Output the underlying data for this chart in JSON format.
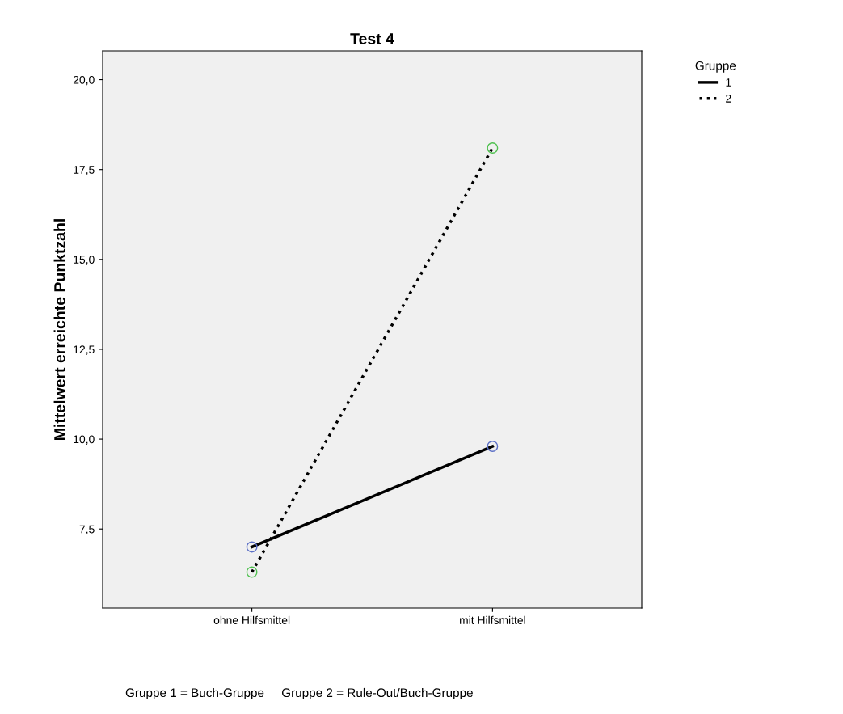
{
  "chart_data": {
    "type": "line",
    "title": "Test 4",
    "ylabel": "Mittelwert erreichte Punktzahl",
    "categories": [
      "ohne Hilfsmittel",
      "mit Hilfsmittel"
    ],
    "series": [
      {
        "name": "1",
        "color": "#000000",
        "colors": [
          "#5b6fc6",
          "#5b6fc6"
        ],
        "line_style": "solid",
        "values": [
          7.0,
          9.8
        ]
      },
      {
        "name": "2",
        "color": "#000000",
        "colors": [
          "#4fc04f",
          "#4fc04f"
        ],
        "line_style": "dotted",
        "values": [
          6.3,
          18.1
        ]
      }
    ],
    "marker": "circle",
    "legend": "top right",
    "legend_title": "Gruppe",
    "grid": false,
    "ylim": [
      5.3,
      20.8
    ],
    "yticks": [
      {
        "value": 7.5,
        "label": "7,5"
      },
      {
        "value": 10,
        "label": "10,0"
      },
      {
        "value": 12.5,
        "label": "12,5"
      },
      {
        "value": 15,
        "label": "15,0"
      },
      {
        "value": 17.5,
        "label": "17,5"
      },
      {
        "value": 20,
        "label": "20,0"
      }
    ],
    "annotations": [
      "Gruppe 1 = Buch-Gruppe     Gruppe 2 = Rule-Out/Buch-Gruppe"
    ]
  }
}
